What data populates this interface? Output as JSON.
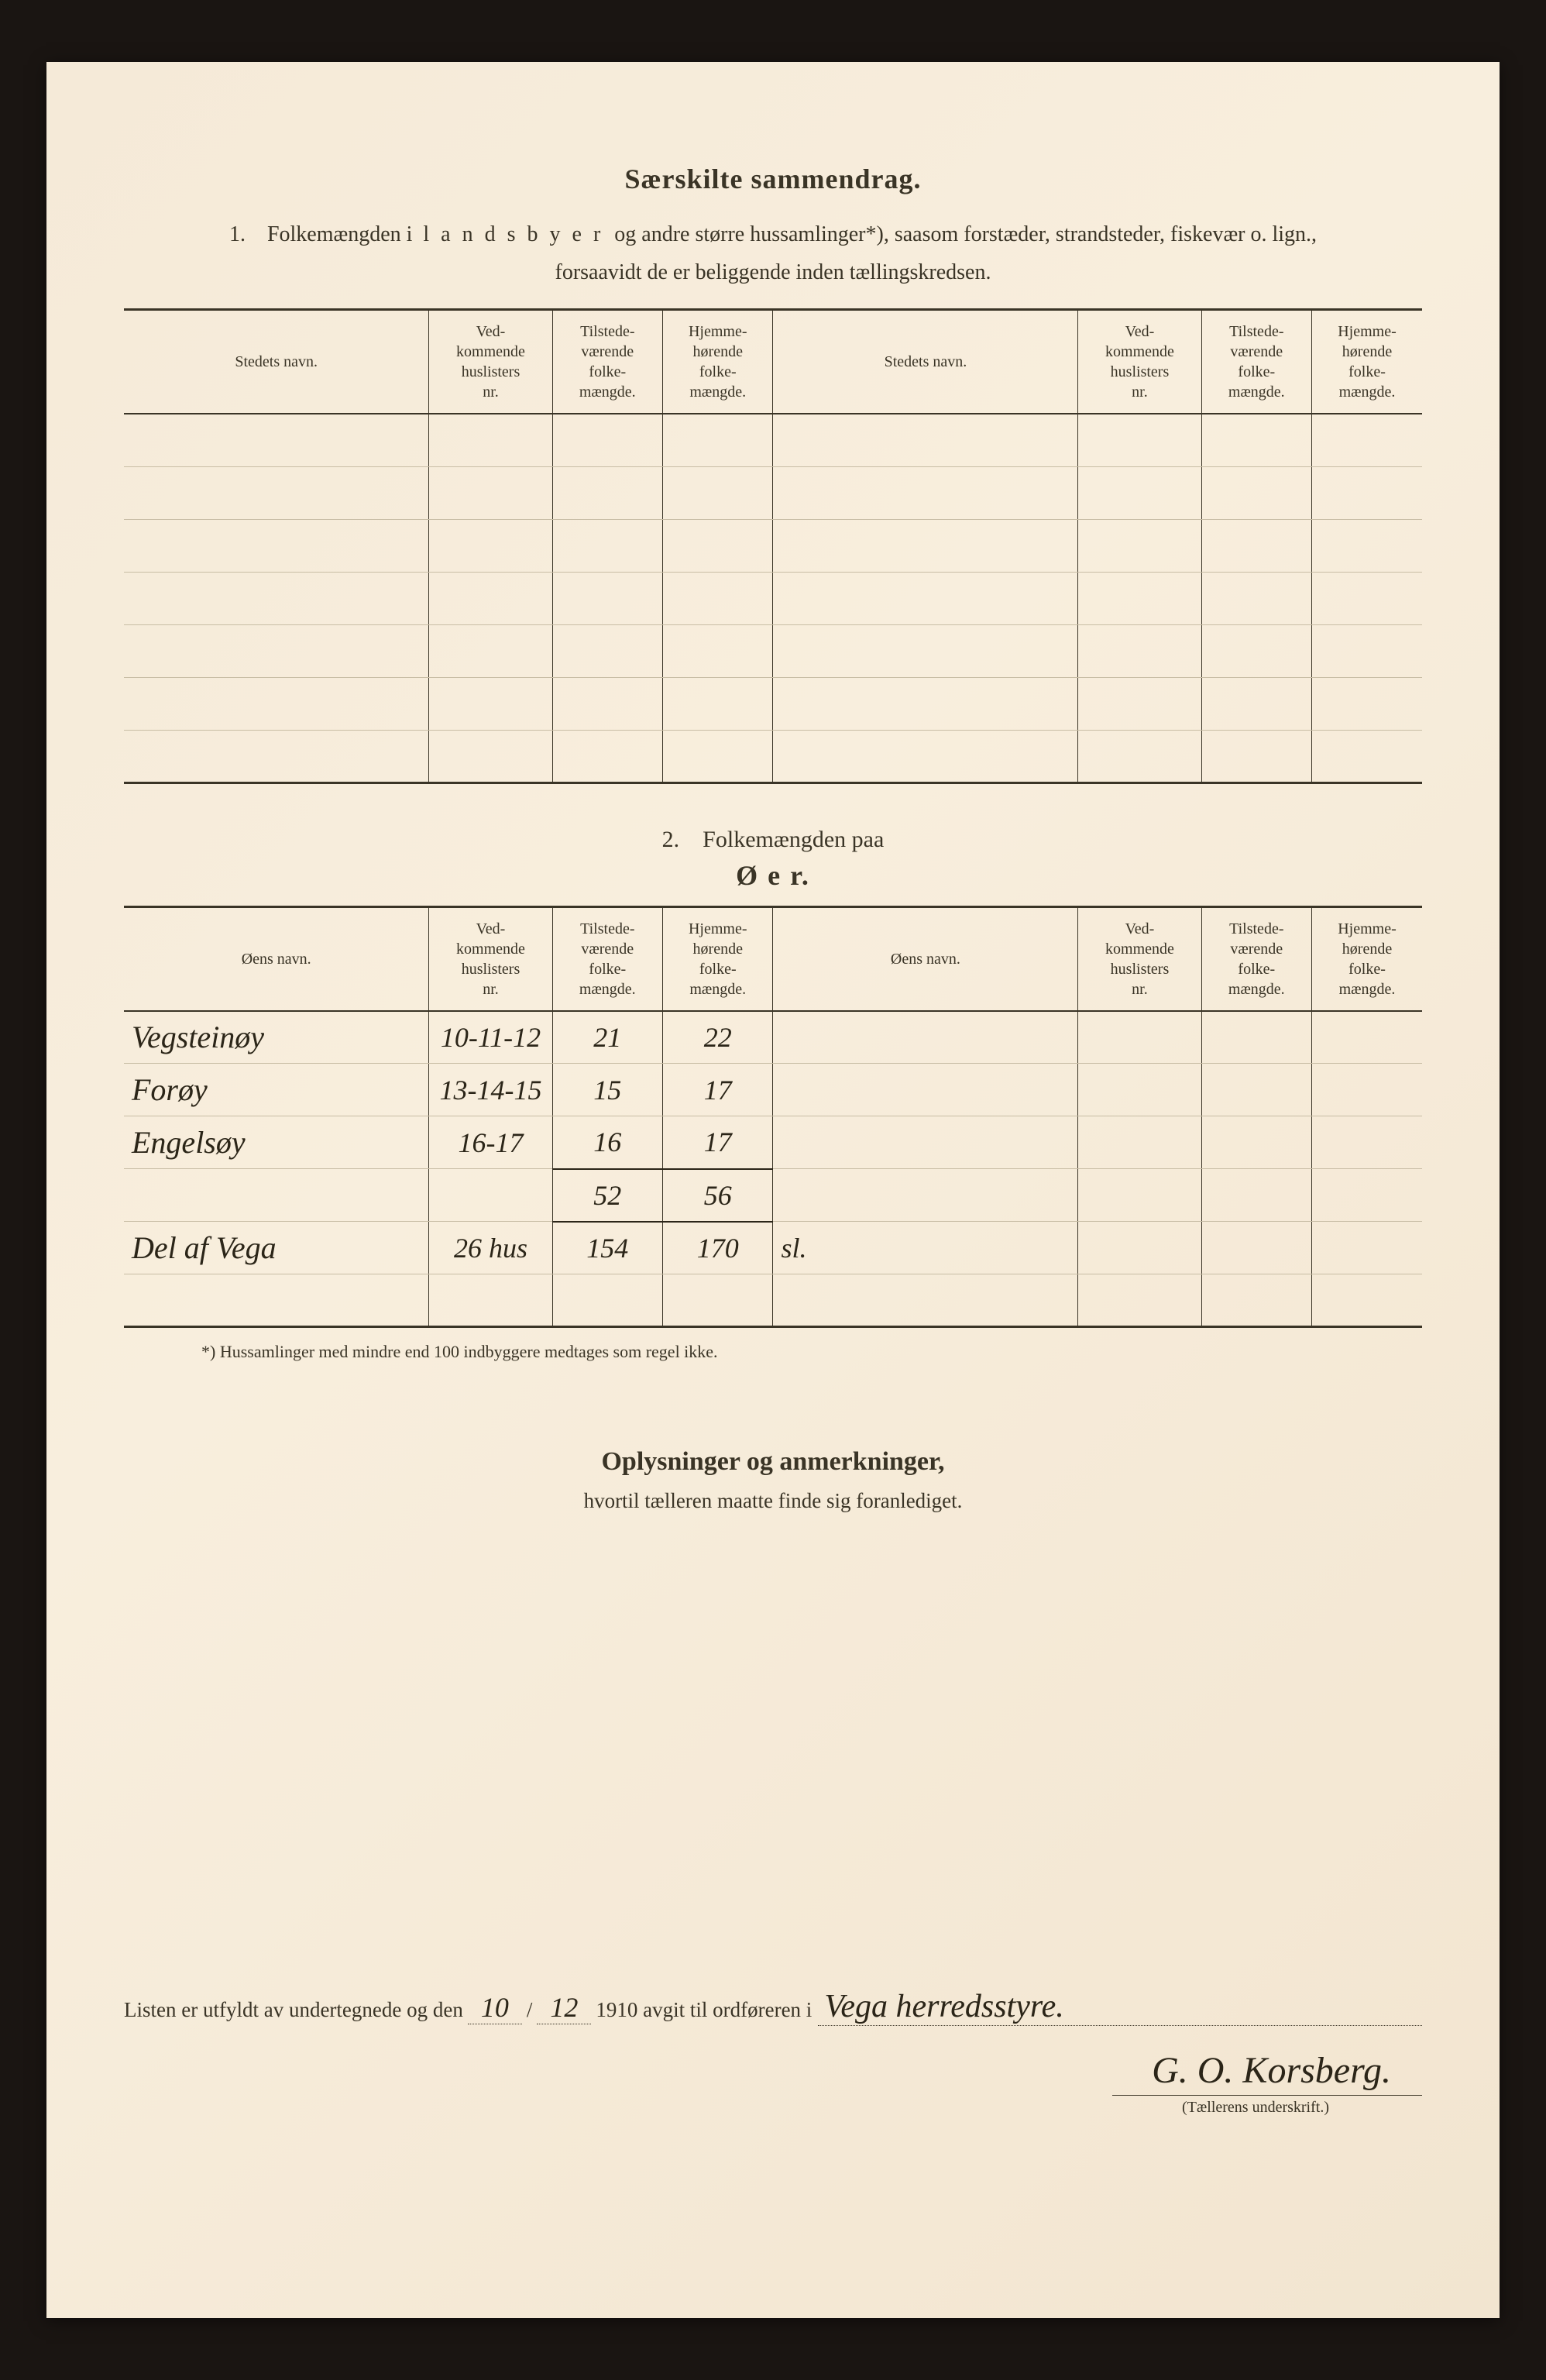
{
  "header": {
    "title": "Særskilte sammendrag.",
    "sub1_prefix": "1. Folkemængden i ",
    "sub1_spaced": "l a n d s b y e r",
    "sub1_rest": " og andre større hussamlinger*), saasom forstæder, strandsteder, fiskevær o. lign.,",
    "sub2": "forsaavidt de er beliggende inden tællingskredsen."
  },
  "table_headers": {
    "stedets_navn": "Stedets navn.",
    "oens_navn": "Øens navn.",
    "vedk": "Ved-\nkommende\nhuslisters\nnr.",
    "tilstede": "Tilstede-\nværende\nfolke-\nmængde.",
    "hjemme": "Hjemme-\nhørende\nfolke-\nmængde."
  },
  "section2": {
    "line1": "2. Folkemængden paa",
    "line2": "Ø e r."
  },
  "oer_rows": [
    {
      "name": "Vegsteinøy",
      "nr": "10-11-12",
      "tils": "21",
      "hjem": "22"
    },
    {
      "name": "Forøy",
      "nr": "13-14-15",
      "tils": "15",
      "hjem": "17"
    },
    {
      "name": "Engelsøy",
      "nr": "16-17",
      "tils": "16",
      "hjem": "17"
    }
  ],
  "oer_sum": {
    "tils": "52",
    "hjem": "56"
  },
  "oer_extra": {
    "name": "Del af Vega",
    "nr": "26 hus",
    "tils": "154",
    "hjem": "170",
    "note": "sl."
  },
  "footnote": "*) Hussamlinger med mindre end 100 indbyggere medtages som regel ikke.",
  "oplysninger": {
    "title": "Oplysninger og anmerkninger,",
    "sub": "hvortil tælleren maatte finde sig foranlediget."
  },
  "signature": {
    "prefix": "Listen er utfyldt av undertegnede og den",
    "day": "10",
    "sep": "/",
    "month": "12",
    "year_text": "1910 avgit til ordføreren i",
    "place": "Vega herredsstyre.",
    "name": "G. O. Korsberg.",
    "caption": "(Tællerens underskrift.)"
  },
  "colors": {
    "paper": "#f5ead8",
    "ink": "#3a3426",
    "handwriting": "#2b2518",
    "background": "#1a1512"
  }
}
